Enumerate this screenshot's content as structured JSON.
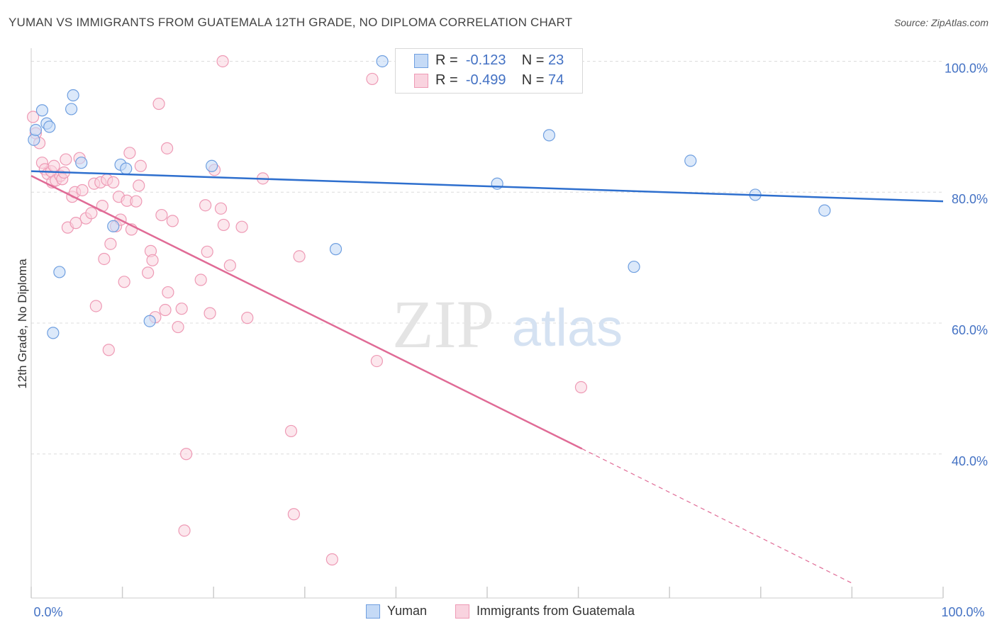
{
  "title": "YUMAN VS IMMIGRANTS FROM GUATEMALA 12TH GRADE, NO DIPLOMA CORRELATION CHART",
  "source": "Source: ZipAtlas.com",
  "watermark": {
    "zip": "ZIP",
    "atlas": "atlas"
  },
  "colors": {
    "yuman": "#6f9fe0",
    "yuman_fill": "#c5daf6",
    "yuman_line": "#2e6fce",
    "guatemala": "#ee9ab5",
    "guatemala_fill": "#f9d3df",
    "guatemala_line": "#e06b96",
    "axis_text": "#4472c4"
  },
  "legend": {
    "rows": [
      {
        "r_label": "R =",
        "r_value": "-0.123",
        "n_label": "N =",
        "n_value": "23"
      },
      {
        "r_label": "R =",
        "r_value": "-0.499",
        "n_label": "N =",
        "n_value": "74"
      }
    ]
  },
  "bottom_legend": {
    "yuman": "Yuman",
    "guatemala": "Immigrants from Guatemala"
  },
  "chart_data": {
    "type": "scatter",
    "title": "YUMAN VS IMMIGRANTS FROM GUATEMALA 12TH GRADE, NO DIPLOMA CORRELATION CHART",
    "xlabel": "",
    "ylabel": "12th Grade, No Diploma",
    "xlim": [
      0,
      100
    ],
    "ylim": [
      18,
      102
    ],
    "x_tick_labels": [
      "0.0%",
      "100.0%"
    ],
    "y_ticks": [
      40,
      60,
      80,
      100
    ],
    "y_tick_labels": [
      "40.0%",
      "60.0%",
      "80.0%",
      "100.0%"
    ],
    "grid": true,
    "series": [
      {
        "name": "Yuman",
        "points": [
          [
            0.3,
            88.0
          ],
          [
            1.2,
            92.5
          ],
          [
            1.7,
            90.5
          ],
          [
            2.0,
            90.0
          ],
          [
            2.4,
            58.5
          ],
          [
            3.1,
            67.8
          ],
          [
            4.4,
            92.7
          ],
          [
            4.6,
            94.8
          ],
          [
            5.5,
            84.5
          ],
          [
            9.0,
            74.8
          ],
          [
            9.8,
            84.2
          ],
          [
            10.4,
            83.6
          ],
          [
            13.0,
            60.3
          ],
          [
            19.8,
            84.0
          ],
          [
            33.4,
            71.3
          ],
          [
            38.5,
            100.0
          ],
          [
            51.1,
            81.3
          ],
          [
            56.8,
            88.7
          ],
          [
            66.1,
            68.6
          ],
          [
            72.3,
            84.8
          ],
          [
            79.4,
            79.6
          ],
          [
            87.0,
            77.2
          ],
          [
            0.5,
            89.5
          ]
        ],
        "trend": {
          "x": [
            0,
            100
          ],
          "y": [
            83.2,
            78.6
          ]
        }
      },
      {
        "name": "Immigrants from Guatemala",
        "points": [
          [
            0.2,
            91.5
          ],
          [
            0.5,
            89.0
          ],
          [
            0.9,
            87.5
          ],
          [
            1.2,
            84.5
          ],
          [
            1.5,
            83.5
          ],
          [
            1.8,
            82.8
          ],
          [
            2.2,
            83.2
          ],
          [
            2.3,
            81.5
          ],
          [
            2.7,
            81.8
          ],
          [
            3.2,
            82.5
          ],
          [
            3.4,
            82.0
          ],
          [
            3.6,
            83.0
          ],
          [
            3.8,
            85.0
          ],
          [
            4.0,
            74.6
          ],
          [
            4.5,
            79.3
          ],
          [
            4.8,
            80.0
          ],
          [
            5.3,
            85.2
          ],
          [
            5.6,
            80.3
          ],
          [
            6.0,
            76.0
          ],
          [
            6.6,
            76.8
          ],
          [
            6.9,
            81.3
          ],
          [
            7.1,
            62.6
          ],
          [
            7.6,
            81.5
          ],
          [
            7.8,
            77.9
          ],
          [
            8.0,
            69.8
          ],
          [
            8.3,
            81.9
          ],
          [
            8.5,
            55.9
          ],
          [
            8.7,
            72.1
          ],
          [
            9.0,
            81.5
          ],
          [
            9.3,
            74.8
          ],
          [
            9.6,
            79.3
          ],
          [
            9.8,
            75.8
          ],
          [
            10.2,
            66.3
          ],
          [
            10.5,
            78.7
          ],
          [
            10.8,
            86.0
          ],
          [
            11.0,
            74.3
          ],
          [
            11.5,
            78.6
          ],
          [
            11.8,
            81.0
          ],
          [
            12.0,
            84.0
          ],
          [
            12.8,
            67.7
          ],
          [
            13.1,
            71.0
          ],
          [
            13.3,
            69.6
          ],
          [
            13.6,
            60.9
          ],
          [
            14.0,
            93.5
          ],
          [
            14.3,
            76.5
          ],
          [
            14.7,
            62.0
          ],
          [
            14.9,
            86.7
          ],
          [
            15.0,
            64.7
          ],
          [
            15.5,
            75.6
          ],
          [
            16.1,
            59.4
          ],
          [
            16.5,
            62.2
          ],
          [
            16.8,
            28.3
          ],
          [
            17.0,
            40.0
          ],
          [
            18.6,
            66.6
          ],
          [
            19.1,
            78.0
          ],
          [
            19.3,
            70.9
          ],
          [
            19.6,
            61.5
          ],
          [
            20.1,
            83.4
          ],
          [
            20.8,
            77.5
          ],
          [
            21.1,
            75.0
          ],
          [
            21.8,
            68.8
          ],
          [
            23.1,
            74.7
          ],
          [
            23.7,
            60.8
          ],
          [
            25.4,
            82.1
          ],
          [
            28.5,
            43.5
          ],
          [
            28.8,
            30.8
          ],
          [
            29.4,
            70.2
          ],
          [
            33.0,
            23.9
          ],
          [
            37.4,
            97.3
          ],
          [
            37.9,
            54.2
          ],
          [
            21.0,
            100.0
          ],
          [
            60.3,
            50.2
          ],
          [
            2.5,
            84.0
          ],
          [
            4.9,
            75.3
          ]
        ],
        "trend": {
          "x": [
            0,
            60.4
          ],
          "y": [
            82.5,
            40.8
          ]
        },
        "trend_extension": {
          "x": [
            60.4,
            90.1
          ],
          "y": [
            40.8,
            20.2
          ]
        }
      }
    ]
  }
}
